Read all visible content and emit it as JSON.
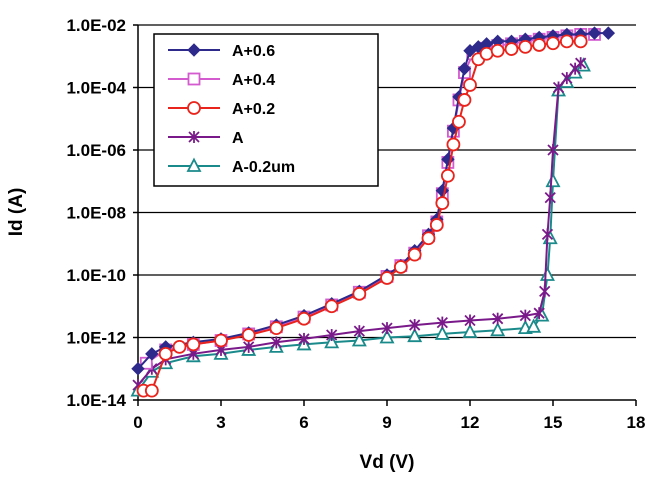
{
  "chart_data": {
    "type": "scatter",
    "title": "",
    "xlabel": "Vd (V)",
    "ylabel": "Id (A)",
    "x_scale": "linear",
    "y_scale": "log",
    "xlim": [
      0,
      18
    ],
    "ylim": [
      1e-14,
      0.01
    ],
    "x_ticks": [
      0,
      3,
      6,
      9,
      12,
      15,
      18
    ],
    "x_tick_labels": [
      "0",
      "3",
      "6",
      "9",
      "12",
      "15",
      "18"
    ],
    "y_ticks": [
      1e-14,
      1e-12,
      1e-10,
      1e-08,
      1e-06,
      0.0001,
      0.01
    ],
    "y_tick_labels": [
      "1.0E-14",
      "1.0E-12",
      "1.0E-10",
      "1.0E-08",
      "1.0E-06",
      "1.0E-04",
      "1.0E-02"
    ],
    "grid": "horizontal",
    "legend_position": "top-left",
    "series": [
      {
        "name": "A+0.6",
        "color": "#2e2a8c",
        "marker": "diamond-filled",
        "x": [
          0,
          0.5,
          1,
          2,
          3,
          4,
          5,
          6,
          7,
          8,
          9,
          9.5,
          10,
          10.5,
          10.8,
          11,
          11.2,
          11.4,
          11.6,
          11.8,
          12,
          12.3,
          12.6,
          13,
          13.5,
          14,
          14.5,
          15,
          15.5,
          16,
          16.5,
          17
        ],
        "y": [
          1e-13,
          3e-13,
          5e-13,
          7e-13,
          9e-13,
          1.4e-12,
          2.5e-12,
          5e-12,
          1.2e-11,
          3e-11,
          1e-10,
          2e-10,
          6e-10,
          2e-09,
          6e-09,
          5e-08,
          5e-07,
          5e-06,
          5e-05,
          0.0004,
          0.0015,
          0.002,
          0.0025,
          0.003,
          0.003,
          0.0035,
          0.004,
          0.0045,
          0.005,
          0.005,
          0.0055,
          0.0055
        ]
      },
      {
        "name": "A+0.4",
        "color": "#d45ad0",
        "marker": "square-open",
        "x": [
          0.3,
          1,
          2,
          3,
          4,
          5,
          6,
          7,
          8,
          9,
          9.5,
          10,
          10.5,
          10.8,
          11,
          11.2,
          11.4,
          11.6,
          11.8,
          12.1,
          12.5,
          13,
          13.5,
          14,
          14.5,
          15,
          15.5,
          16,
          16.5
        ],
        "y": [
          1.5e-13,
          4e-13,
          6e-13,
          8e-13,
          1.3e-12,
          2.2e-12,
          4.5e-12,
          1.1e-11,
          2.8e-11,
          9e-11,
          2e-10,
          5e-10,
          1.8e-09,
          5e-09,
          4e-08,
          4e-07,
          4e-06,
          4e-05,
          0.0003,
          0.0012,
          0.0018,
          0.0022,
          0.0025,
          0.003,
          0.0035,
          0.004,
          0.0045,
          0.005,
          0.005
        ]
      },
      {
        "name": "A+0.2",
        "color": "#e8241c",
        "marker": "circle-open",
        "x": [
          0.2,
          0.5,
          1,
          1.5,
          2,
          3,
          4,
          5,
          6,
          7,
          8,
          9,
          9.5,
          10,
          10.5,
          10.8,
          11,
          11.2,
          11.4,
          11.6,
          11.8,
          12,
          12.3,
          12.6,
          13,
          13.5,
          14,
          14.5,
          15,
          15.5,
          16
        ],
        "y": [
          2e-14,
          2e-14,
          3e-13,
          5e-13,
          6e-13,
          8e-13,
          1.2e-12,
          2e-12,
          4e-12,
          1e-11,
          2.5e-11,
          8e-11,
          1.8e-10,
          4.5e-10,
          1.5e-09,
          4e-09,
          2e-08,
          1.5e-07,
          1.5e-06,
          8e-06,
          4e-05,
          0.00012,
          0.0008,
          0.0012,
          0.0015,
          0.0017,
          0.002,
          0.0023,
          0.0026,
          0.003,
          0.003
        ]
      },
      {
        "name": "A",
        "color": "#7a1a8a",
        "marker": "star",
        "x": [
          0,
          0.5,
          1,
          2,
          3,
          4,
          5,
          6,
          7,
          8,
          9,
          10,
          11,
          12,
          13,
          14,
          14.5,
          14.7,
          14.8,
          14.9,
          15,
          15.2,
          15.5,
          15.8,
          16
        ],
        "y": [
          3e-14,
          1e-13,
          2e-13,
          3e-13,
          4e-13,
          5e-13,
          7e-13,
          9e-13,
          1.2e-12,
          1.6e-12,
          2e-12,
          2.5e-12,
          3e-12,
          3.5e-12,
          4e-12,
          5e-12,
          6e-12,
          3e-11,
          2e-09,
          3e-08,
          1e-06,
          0.0001,
          0.0002,
          0.0004,
          0.0006
        ]
      },
      {
        "name": "A-0.2um",
        "color": "#1a8a8a",
        "marker": "triangle-open",
        "x": [
          0,
          0.5,
          1,
          2,
          3,
          4,
          5,
          6,
          7,
          8,
          9,
          10,
          11,
          12,
          13,
          14,
          14.3,
          14.6,
          14.8,
          14.9,
          15,
          15.2,
          15.5,
          15.8,
          16.1
        ],
        "y": [
          2e-14,
          8e-14,
          1.5e-13,
          2.5e-13,
          3e-13,
          4e-13,
          5e-13,
          6e-13,
          7e-13,
          8e-13,
          1e-12,
          1.1e-12,
          1.3e-12,
          1.5e-12,
          1.7e-12,
          2e-12,
          2.2e-12,
          5e-12,
          1e-10,
          1.5e-09,
          1e-07,
          8e-05,
          0.00015,
          0.0003,
          0.0005
        ]
      }
    ]
  }
}
